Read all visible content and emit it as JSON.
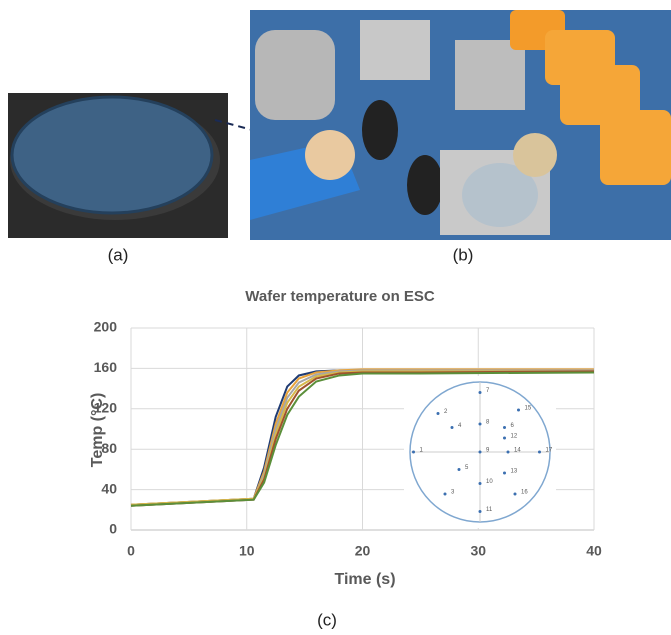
{
  "panel_labels": [
    "(a)",
    "(b)",
    "(c)"
  ],
  "chart_data": {
    "type": "line",
    "title": "Wafer temperature on ESC",
    "x_label": "Time (s)",
    "y_label": "Temp (°C)",
    "x": [
      0,
      10.6,
      11.5,
      12.5,
      13.5,
      14.5,
      16,
      18,
      20,
      25,
      40
    ],
    "series": [
      {
        "color": "#1f3b73",
        "values": [
          25,
          31,
          62,
          112,
          142,
          153,
          157,
          158,
          158,
          158,
          158
        ]
      },
      {
        "color": "#e8a33a",
        "values": [
          25,
          31,
          58,
          105,
          136,
          150,
          156,
          158,
          159,
          159,
          159
        ]
      },
      {
        "color": "#a6a6a6",
        "values": [
          24,
          30,
          55,
          100,
          131,
          146,
          154,
          157,
          158,
          158,
          158
        ]
      },
      {
        "color": "#d6b84a",
        "values": [
          25,
          31,
          52,
          95,
          126,
          142,
          152,
          156,
          157,
          157,
          157
        ]
      },
      {
        "color": "#a0522d",
        "values": [
          24,
          30,
          50,
          90,
          120,
          138,
          150,
          155,
          156,
          156,
          157
        ]
      },
      {
        "color": "#5b8f3a",
        "values": [
          24,
          30,
          47,
          84,
          114,
          132,
          147,
          153,
          155,
          155,
          156
        ]
      }
    ],
    "xlim": [
      0,
      40
    ],
    "ylim": [
      0,
      200
    ],
    "xticks": [
      0,
      10,
      20,
      30,
      40
    ],
    "yticks": [
      0,
      40,
      80,
      120,
      160,
      200
    ],
    "grid": true,
    "inset_labels": [
      "1",
      "2",
      "3",
      "4",
      "5",
      "6",
      "7",
      "8",
      "9",
      "10",
      "11",
      "12",
      "13",
      "14",
      "15",
      "16",
      "17"
    ]
  }
}
